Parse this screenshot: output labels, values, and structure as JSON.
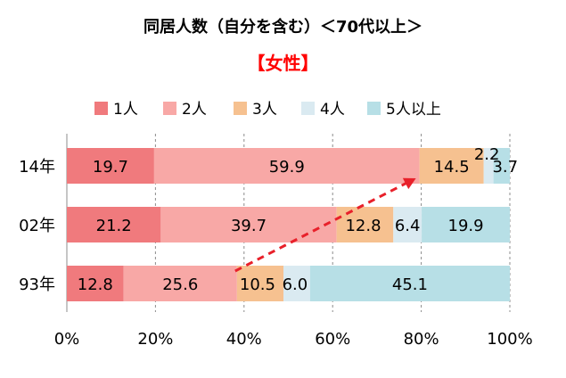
{
  "title": "同居人数（自分を含む）＜70代以上＞",
  "subtitle": "【女性】",
  "chart_data": {
    "type": "bar",
    "orientation": "horizontal",
    "stacked": true,
    "percent": true,
    "categories": [
      "14年",
      "02年",
      "93年"
    ],
    "series": [
      {
        "name": "1人",
        "color": "#f07a7d",
        "values": [
          19.7,
          21.2,
          12.8
        ]
      },
      {
        "name": "2人",
        "color": "#f8a8a6",
        "values": [
          59.9,
          39.7,
          25.6
        ]
      },
      {
        "name": "3人",
        "color": "#f6c190",
        "values": [
          14.5,
          12.8,
          10.5
        ]
      },
      {
        "name": "4人",
        "color": "#daeaf1",
        "values": [
          2.2,
          6.4,
          6.0
        ]
      },
      {
        "name": "5人以上",
        "color": "#b7dfe6",
        "values": [
          3.7,
          19.9,
          45.1
        ]
      }
    ],
    "xlim": [
      0,
      100
    ],
    "xticks": [
      "0%",
      "20%",
      "40%",
      "60%",
      "80%",
      "100%"
    ],
    "grid": true,
    "legend_position": "top",
    "annotation": {
      "type": "dashed-arrow",
      "color": "#e8202a",
      "from": "93年 2人/3人 boundary",
      "to": "14年 2人/3人 boundary"
    }
  }
}
